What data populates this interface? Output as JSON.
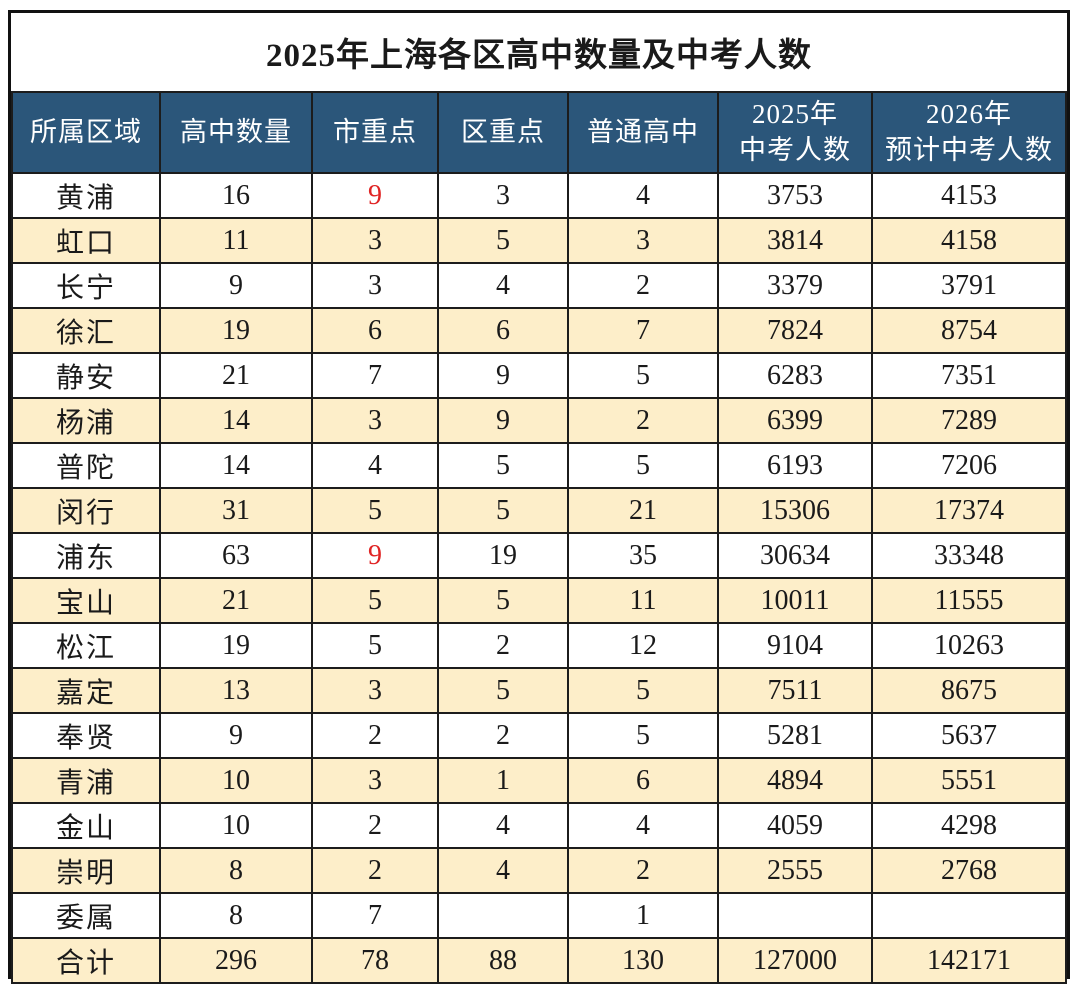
{
  "title": "2025年上海各区高中数量及中考人数",
  "colors": {
    "header_bg": "#2b567a",
    "header_text": "#ffffff",
    "stripe_bg": "#fdeec9",
    "highlight_red": "#e02424",
    "border": "#1c1c1c"
  },
  "table": {
    "headers": [
      "所属区域",
      "高中数量",
      "市重点",
      "区重点",
      "普通高中",
      "2025年\n中考人数",
      "2026年\n预计中考人数"
    ],
    "rows": [
      [
        "黄浦",
        "16",
        "9",
        "3",
        "4",
        "3753",
        "4153"
      ],
      [
        "虹口",
        "11",
        "3",
        "5",
        "3",
        "3814",
        "4158"
      ],
      [
        "长宁",
        "9",
        "3",
        "4",
        "2",
        "3379",
        "3791"
      ],
      [
        "徐汇",
        "19",
        "6",
        "6",
        "7",
        "7824",
        "8754"
      ],
      [
        "静安",
        "21",
        "7",
        "9",
        "5",
        "6283",
        "7351"
      ],
      [
        "杨浦",
        "14",
        "3",
        "9",
        "2",
        "6399",
        "7289"
      ],
      [
        "普陀",
        "14",
        "4",
        "5",
        "5",
        "6193",
        "7206"
      ],
      [
        "闵行",
        "31",
        "5",
        "5",
        "21",
        "15306",
        "17374"
      ],
      [
        "浦东",
        "63",
        "9",
        "19",
        "35",
        "30634",
        "33348"
      ],
      [
        "宝山",
        "21",
        "5",
        "5",
        "11",
        "10011",
        "11555"
      ],
      [
        "松江",
        "19",
        "5",
        "2",
        "12",
        "9104",
        "10263"
      ],
      [
        "嘉定",
        "13",
        "3",
        "5",
        "5",
        "7511",
        "8675"
      ],
      [
        "奉贤",
        "9",
        "2",
        "2",
        "5",
        "5281",
        "5637"
      ],
      [
        "青浦",
        "10",
        "3",
        "1",
        "6",
        "4894",
        "5551"
      ],
      [
        "金山",
        "10",
        "2",
        "4",
        "4",
        "4059",
        "4298"
      ],
      [
        "崇明",
        "8",
        "2",
        "4",
        "2",
        "2555",
        "2768"
      ],
      [
        "委属",
        "8",
        "7",
        "",
        "1",
        "",
        ""
      ],
      [
        "合计",
        "296",
        "78",
        "88",
        "130",
        "127000",
        "142171"
      ]
    ],
    "red_cells": [
      [
        0,
        2
      ],
      [
        8,
        2
      ]
    ]
  }
}
